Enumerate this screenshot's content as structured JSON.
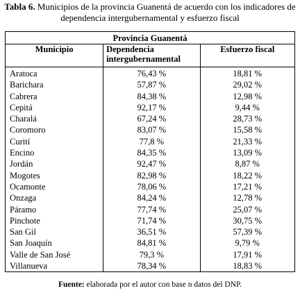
{
  "caption": {
    "label": "Tabla 6.",
    "text": "Municipios de la provincia Guanentá de acuerdo con los indicadores de dependencia intergubernamental y esfuerzo fiscal"
  },
  "table": {
    "group_header": "Provincia Guanentá",
    "columns": [
      "Municipio",
      "Dependencia intergubernamental",
      "Esfuerzo fiscal"
    ],
    "rows": [
      [
        "Aratoca",
        "76,43 %",
        "18,81 %"
      ],
      [
        "Barichara",
        "57,87 %",
        "29,02 %"
      ],
      [
        "Cabrera",
        "84,38 %",
        "12,98 %"
      ],
      [
        "Cepitá",
        "92,17 %",
        "9,44 %"
      ],
      [
        "Charalá",
        "67,24 %",
        "28,73 %"
      ],
      [
        "Coromoro",
        "83,07 %",
        "15,58 %"
      ],
      [
        "Curití",
        "77,8 %",
        "21,33 %"
      ],
      [
        "Encino",
        "84,35 %",
        "13,09 %"
      ],
      [
        "Jordán",
        "92,47 %",
        "8,87 %"
      ],
      [
        "Mogotes",
        "82,98 %",
        "18,22 %"
      ],
      [
        "Ocamonte",
        "78,06 %",
        "17,21 %"
      ],
      [
        "Onzaga",
        "84,24 %",
        "12,78 %"
      ],
      [
        "Páramo",
        "77,74 %",
        "25,07 %"
      ],
      [
        "Pinchote",
        "71,74 %",
        "30,75 %"
      ],
      [
        "San Gil",
        "36,51 %",
        "57,39 %"
      ],
      [
        "San Joaquín",
        "84,81 %",
        "9,79 %"
      ],
      [
        "Valle de San José",
        "79,3 %",
        "17,91 %"
      ],
      [
        "Villanueva",
        "78,34 %",
        "18,83 %"
      ]
    ]
  },
  "footnote": {
    "label": "Fuente:",
    "text": "elaborada por el autor con base n datos del DNP."
  }
}
